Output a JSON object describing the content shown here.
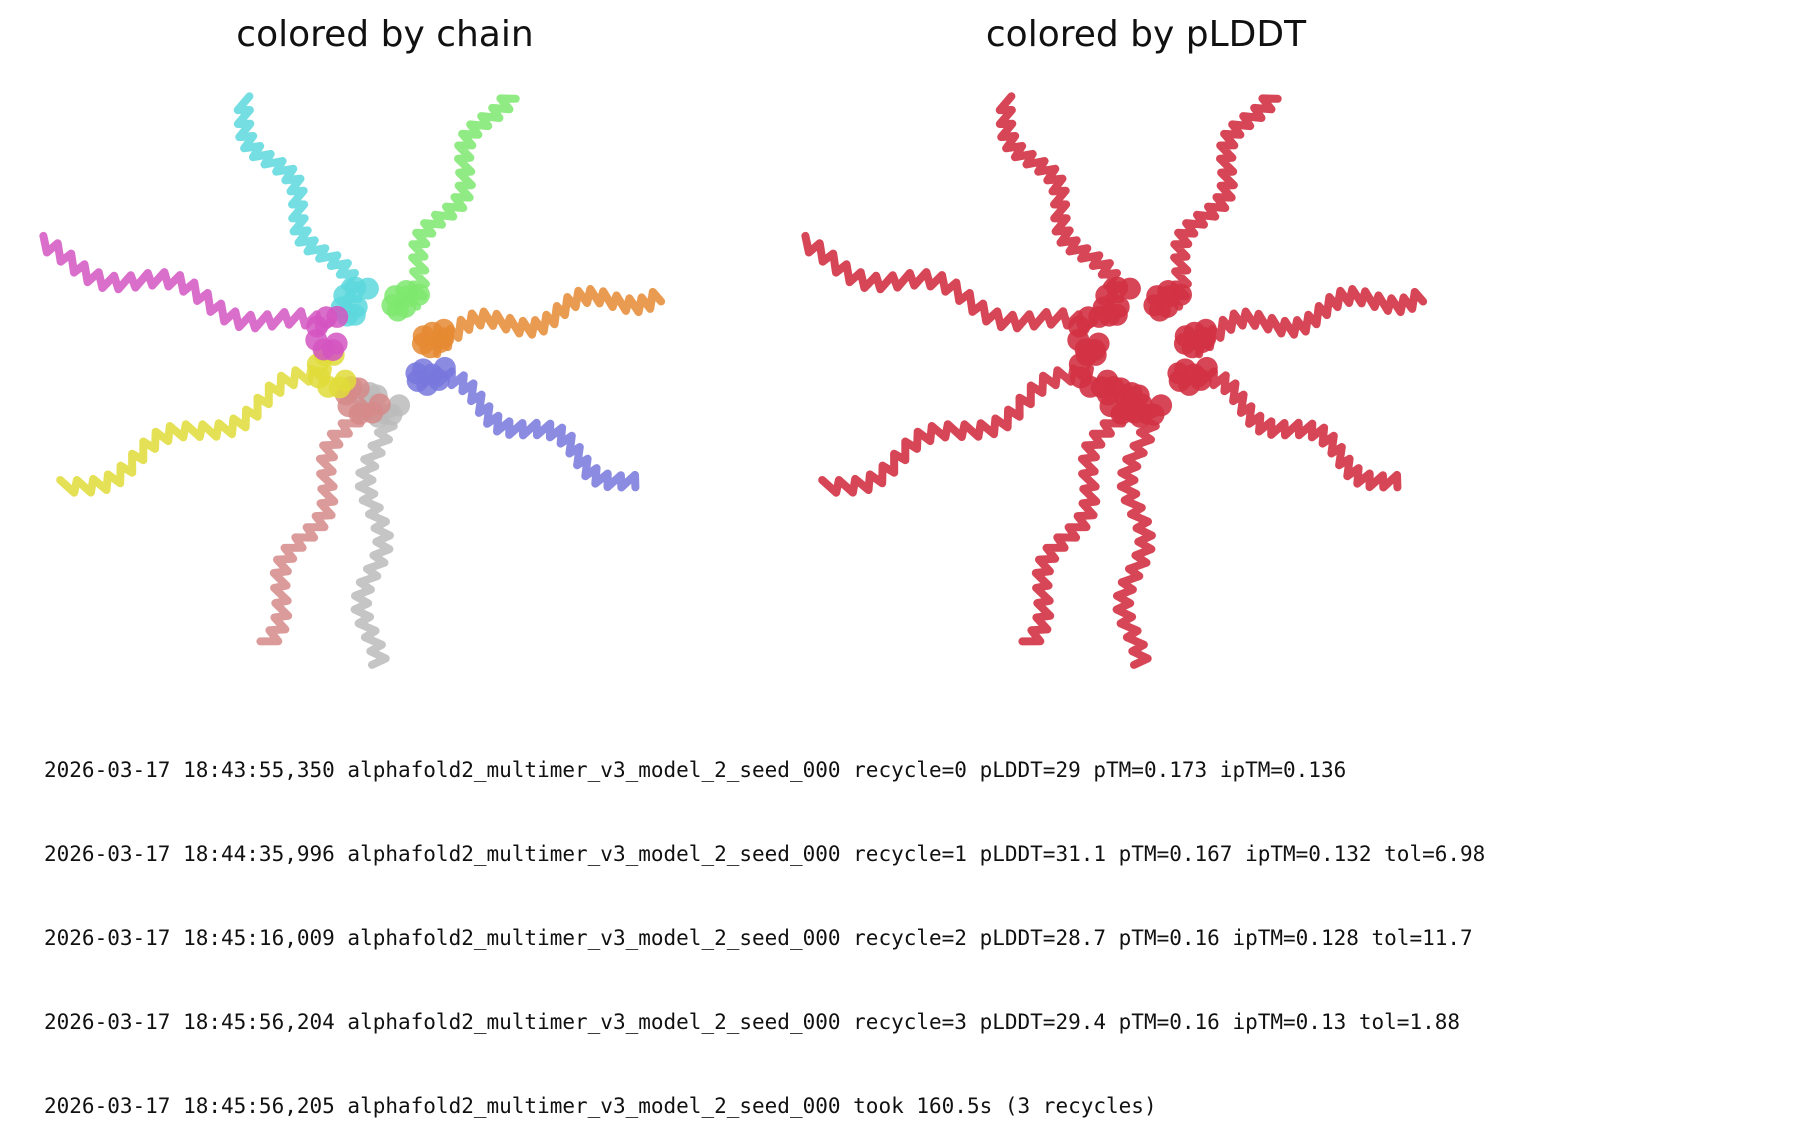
{
  "titles": {
    "left": "colored by chain",
    "right": "colored by pLDDT"
  },
  "colors": {
    "plddt": "#d23244",
    "chains": [
      "#5dd8dd",
      "#7ee86e",
      "#e58a32",
      "#7777dd",
      "#bbbbbb",
      "#d68a8a",
      "#e0dc3a",
      "#d455c2"
    ]
  },
  "log": [
    "2026-03-17 18:43:55,350 alphafold2_multimer_v3_model_2_seed_000 recycle=0 pLDDT=29 pTM=0.173 ipTM=0.136",
    "2026-03-17 18:44:35,996 alphafold2_multimer_v3_model_2_seed_000 recycle=1 pLDDT=31.1 pTM=0.167 ipTM=0.132 tol=6.98",
    "2026-03-17 18:45:16,009 alphafold2_multimer_v3_model_2_seed_000 recycle=2 pLDDT=28.7 pTM=0.16 ipTM=0.128 tol=11.7",
    "2026-03-17 18:45:56,204 alphafold2_multimer_v3_model_2_seed_000 recycle=3 pLDDT=29.4 pTM=0.16 ipTM=0.13 tol=1.88",
    "2026-03-17 18:45:56,205 alphafold2_multimer_v3_model_2_seed_000 took 160.5s (3 recycles)"
  ]
}
